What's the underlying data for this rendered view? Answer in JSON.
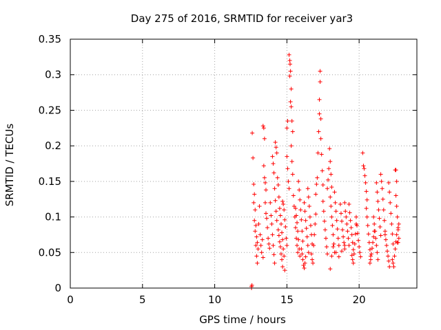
{
  "chart_data": {
    "type": "scatter",
    "title": "Day 275 of 2016, SRMTID for receiver yar3",
    "xlabel": "GPS time / hours",
    "ylabel": "SRMTID / TECUs",
    "xlim": [
      0,
      24
    ],
    "ylim": [
      0,
      0.35
    ],
    "xticks": [
      0,
      5,
      10,
      15,
      20
    ],
    "xtick_labels": [
      "0",
      "5",
      "10",
      "15",
      "20"
    ],
    "yticks": [
      0,
      0.05,
      0.1,
      0.15,
      0.2,
      0.25,
      0.3,
      0.35
    ],
    "ytick_labels": [
      "0",
      "0.05",
      "0.1",
      "0.15",
      "0.2",
      "0.25",
      "0.3",
      "0.35"
    ],
    "grid": true,
    "marker": "+",
    "color": "#ff0000",
    "series": [
      {
        "name": "SRMTID",
        "points": [
          [
            12.55,
            0.002
          ],
          [
            12.55,
            0.0
          ],
          [
            12.58,
            0.004
          ],
          [
            12.6,
            0.218
          ],
          [
            12.65,
            0.183
          ],
          [
            12.7,
            0.12
          ],
          [
            12.75,
            0.095
          ],
          [
            12.8,
            0.08
          ],
          [
            12.85,
            0.06
          ],
          [
            12.9,
            0.045
          ],
          [
            12.95,
            0.035
          ],
          [
            12.7,
            0.146
          ],
          [
            12.75,
            0.132
          ],
          [
            12.8,
            0.11
          ],
          [
            12.85,
            0.088
          ],
          [
            12.9,
            0.072
          ],
          [
            12.95,
            0.064
          ],
          [
            13.0,
            0.055
          ],
          [
            13.05,
            0.09
          ],
          [
            13.1,
            0.115
          ],
          [
            13.15,
            0.075
          ],
          [
            13.2,
            0.06
          ],
          [
            13.25,
            0.05
          ],
          [
            13.3,
            0.068
          ],
          [
            13.35,
            0.043
          ],
          [
            13.35,
            0.228
          ],
          [
            13.4,
            0.225
          ],
          [
            13.45,
            0.21
          ],
          [
            13.4,
            0.172
          ],
          [
            13.45,
            0.155
          ],
          [
            13.5,
            0.148
          ],
          [
            13.55,
            0.138
          ],
          [
            13.5,
            0.12
          ],
          [
            13.55,
            0.105
          ],
          [
            13.6,
            0.098
          ],
          [
            13.65,
            0.085
          ],
          [
            13.7,
            0.07
          ],
          [
            13.75,
            0.062
          ],
          [
            13.8,
            0.056
          ],
          [
            13.85,
            0.12
          ],
          [
            13.9,
            0.102
          ],
          [
            13.95,
            0.09
          ],
          [
            14.0,
            0.075
          ],
          [
            14.05,
            0.06
          ],
          [
            14.1,
            0.047
          ],
          [
            14.15,
            0.035
          ],
          [
            14.0,
            0.185
          ],
          [
            14.05,
            0.175
          ],
          [
            14.1,
            0.162
          ],
          [
            14.15,
            0.14
          ],
          [
            14.2,
            0.123
          ],
          [
            14.25,
            0.108
          ],
          [
            14.3,
            0.095
          ],
          [
            14.2,
            0.205
          ],
          [
            14.25,
            0.198
          ],
          [
            14.3,
            0.19
          ],
          [
            14.35,
            0.155
          ],
          [
            14.4,
            0.145
          ],
          [
            14.45,
            0.128
          ],
          [
            14.5,
            0.112
          ],
          [
            14.4,
            0.082
          ],
          [
            14.45,
            0.074
          ],
          [
            14.5,
            0.065
          ],
          [
            14.55,
            0.058
          ],
          [
            14.6,
            0.048
          ],
          [
            14.65,
            0.04
          ],
          [
            14.7,
            0.03
          ],
          [
            14.55,
            0.102
          ],
          [
            14.6,
            0.09
          ],
          [
            14.65,
            0.078
          ],
          [
            14.7,
            0.068
          ],
          [
            14.75,
            0.055
          ],
          [
            14.8,
            0.045
          ],
          [
            14.85,
            0.025
          ],
          [
            14.7,
            0.122
          ],
          [
            14.75,
            0.118
          ],
          [
            14.8,
            0.11
          ],
          [
            14.85,
            0.096
          ],
          [
            14.9,
            0.086
          ],
          [
            14.95,
            0.07
          ],
          [
            15.0,
            0.06
          ],
          [
            15.0,
            0.185
          ],
          [
            15.05,
            0.168
          ],
          [
            15.1,
            0.15
          ],
          [
            15.15,
            0.14
          ],
          [
            15.0,
            0.225
          ],
          [
            15.05,
            0.235
          ],
          [
            15.15,
            0.328
          ],
          [
            15.2,
            0.32
          ],
          [
            15.22,
            0.315
          ],
          [
            15.25,
            0.305
          ],
          [
            15.2,
            0.298
          ],
          [
            15.3,
            0.28
          ],
          [
            15.25,
            0.262
          ],
          [
            15.3,
            0.255
          ],
          [
            15.35,
            0.235
          ],
          [
            15.4,
            0.22
          ],
          [
            15.3,
            0.2
          ],
          [
            15.35,
            0.178
          ],
          [
            15.4,
            0.16
          ],
          [
            15.45,
            0.13
          ],
          [
            15.5,
            0.115
          ],
          [
            15.55,
            0.1
          ],
          [
            15.6,
            0.085
          ],
          [
            15.65,
            0.07
          ],
          [
            15.7,
            0.06
          ],
          [
            15.75,
            0.05
          ],
          [
            15.6,
            0.112
          ],
          [
            15.65,
            0.102
          ],
          [
            15.7,
            0.092
          ],
          [
            15.75,
            0.08
          ],
          [
            15.8,
            0.068
          ],
          [
            15.85,
            0.055
          ],
          [
            15.9,
            0.045
          ],
          [
            15.8,
            0.15
          ],
          [
            15.85,
            0.138
          ],
          [
            15.9,
            0.124
          ],
          [
            15.95,
            0.11
          ],
          [
            16.0,
            0.096
          ],
          [
            16.05,
            0.08
          ],
          [
            16.1,
            0.066
          ],
          [
            16.0,
            0.055
          ],
          [
            16.05,
            0.048
          ],
          [
            16.1,
            0.04
          ],
          [
            16.15,
            0.032
          ],
          [
            16.2,
            0.028
          ],
          [
            16.25,
            0.035
          ],
          [
            16.3,
            0.044
          ],
          [
            16.2,
            0.12
          ],
          [
            16.25,
            0.108
          ],
          [
            16.3,
            0.095
          ],
          [
            16.35,
            0.084
          ],
          [
            16.4,
            0.072
          ],
          [
            16.45,
            0.06
          ],
          [
            16.5,
            0.05
          ],
          [
            16.45,
            0.14
          ],
          [
            16.5,
            0.128
          ],
          [
            16.55,
            0.115
          ],
          [
            16.6,
            0.1
          ],
          [
            16.65,
            0.088
          ],
          [
            16.7,
            0.075
          ],
          [
            16.75,
            0.062
          ],
          [
            16.7,
            0.048
          ],
          [
            16.75,
            0.04
          ],
          [
            16.8,
            0.035
          ],
          [
            16.85,
            0.06
          ],
          [
            16.9,
            0.075
          ],
          [
            16.95,
            0.09
          ],
          [
            17.0,
            0.104
          ],
          [
            17.0,
            0.132
          ],
          [
            17.05,
            0.146
          ],
          [
            17.1,
            0.155
          ],
          [
            17.15,
            0.19
          ],
          [
            17.2,
            0.22
          ],
          [
            17.25,
            0.245
          ],
          [
            17.25,
            0.265
          ],
          [
            17.3,
            0.305
          ],
          [
            17.3,
            0.29
          ],
          [
            17.35,
            0.238
          ],
          [
            17.35,
            0.21
          ],
          [
            17.4,
            0.188
          ],
          [
            17.45,
            0.165
          ],
          [
            17.5,
            0.145
          ],
          [
            17.5,
            0.122
          ],
          [
            17.55,
            0.108
          ],
          [
            17.6,
            0.094
          ],
          [
            17.65,
            0.082
          ],
          [
            17.7,
            0.07
          ],
          [
            17.75,
            0.058
          ],
          [
            17.8,
            0.048
          ],
          [
            17.8,
            0.14
          ],
          [
            17.85,
            0.152
          ],
          [
            17.9,
            0.168
          ],
          [
            17.95,
            0.196
          ],
          [
            18.0,
            0.178
          ],
          [
            18.05,
            0.16
          ],
          [
            18.1,
            0.142
          ],
          [
            18.0,
            0.128
          ],
          [
            18.05,
            0.115
          ],
          [
            18.1,
            0.1
          ],
          [
            18.15,
            0.088
          ],
          [
            18.2,
            0.075
          ],
          [
            18.25,
            0.062
          ],
          [
            18.3,
            0.05
          ],
          [
            18.3,
            0.135
          ],
          [
            18.35,
            0.12
          ],
          [
            18.4,
            0.108
          ],
          [
            18.45,
            0.095
          ],
          [
            18.5,
            0.083
          ],
          [
            18.55,
            0.07
          ],
          [
            18.6,
            0.06
          ],
          [
            18.0,
            0.027
          ],
          [
            18.1,
            0.045
          ],
          [
            18.2,
            0.058
          ],
          [
            18.4,
            0.05
          ],
          [
            18.6,
            0.044
          ],
          [
            18.8,
            0.052
          ],
          [
            19.0,
            0.06
          ],
          [
            18.7,
            0.118
          ],
          [
            18.75,
            0.105
          ],
          [
            18.8,
            0.094
          ],
          [
            18.85,
            0.082
          ],
          [
            18.9,
            0.072
          ],
          [
            18.95,
            0.064
          ],
          [
            19.0,
            0.055
          ],
          [
            19.0,
            0.12
          ],
          [
            19.05,
            0.108
          ],
          [
            19.1,
            0.1
          ],
          [
            19.15,
            0.09
          ],
          [
            19.2,
            0.08
          ],
          [
            19.25,
            0.07
          ],
          [
            19.3,
            0.06
          ],
          [
            19.3,
            0.118
          ],
          [
            19.35,
            0.106
          ],
          [
            19.4,
            0.095
          ],
          [
            19.45,
            0.085
          ],
          [
            19.5,
            0.075
          ],
          [
            19.55,
            0.064
          ],
          [
            19.6,
            0.054
          ],
          [
            19.5,
            0.046
          ],
          [
            19.55,
            0.04
          ],
          [
            19.6,
            0.035
          ],
          [
            19.65,
            0.048
          ],
          [
            19.7,
            0.062
          ],
          [
            19.75,
            0.076
          ],
          [
            19.8,
            0.09
          ],
          [
            19.8,
            0.1
          ],
          [
            19.85,
            0.088
          ],
          [
            19.9,
            0.077
          ],
          [
            19.95,
            0.067
          ],
          [
            20.0,
            0.058
          ],
          [
            20.05,
            0.05
          ],
          [
            20.1,
            0.044
          ],
          [
            20.25,
            0.19
          ],
          [
            20.3,
            0.172
          ],
          [
            20.35,
            0.168
          ],
          [
            20.4,
            0.158
          ],
          [
            20.45,
            0.148
          ],
          [
            20.5,
            0.136
          ],
          [
            20.55,
            0.124
          ],
          [
            20.5,
            0.112
          ],
          [
            20.55,
            0.1
          ],
          [
            20.6,
            0.088
          ],
          [
            20.65,
            0.076
          ],
          [
            20.7,
            0.064
          ],
          [
            20.75,
            0.054
          ],
          [
            20.8,
            0.045
          ],
          [
            20.75,
            0.035
          ],
          [
            20.8,
            0.04
          ],
          [
            20.85,
            0.048
          ],
          [
            20.9,
            0.056
          ],
          [
            20.95,
            0.064
          ],
          [
            21.0,
            0.072
          ],
          [
            21.05,
            0.08
          ],
          [
            21.0,
            0.1
          ],
          [
            21.05,
            0.09
          ],
          [
            21.1,
            0.08
          ],
          [
            21.15,
            0.07
          ],
          [
            21.2,
            0.06
          ],
          [
            21.25,
            0.05
          ],
          [
            21.3,
            0.04
          ],
          [
            21.2,
            0.148
          ],
          [
            21.25,
            0.135
          ],
          [
            21.3,
            0.122
          ],
          [
            21.35,
            0.11
          ],
          [
            21.4,
            0.098
          ],
          [
            21.45,
            0.086
          ],
          [
            21.5,
            0.074
          ],
          [
            21.5,
            0.16
          ],
          [
            21.55,
            0.15
          ],
          [
            21.6,
            0.14
          ],
          [
            21.65,
            0.125
          ],
          [
            21.7,
            0.11
          ],
          [
            21.75,
            0.095
          ],
          [
            21.8,
            0.08
          ],
          [
            21.8,
            0.075
          ],
          [
            21.85,
            0.068
          ],
          [
            21.9,
            0.06
          ],
          [
            21.95,
            0.052
          ],
          [
            22.0,
            0.045
          ],
          [
            22.05,
            0.038
          ],
          [
            22.1,
            0.03
          ],
          [
            22.05,
            0.148
          ],
          [
            22.1,
            0.135
          ],
          [
            22.15,
            0.12
          ],
          [
            22.2,
            0.105
          ],
          [
            22.25,
            0.09
          ],
          [
            22.3,
            0.076
          ],
          [
            22.35,
            0.062
          ],
          [
            22.3,
            0.04
          ],
          [
            22.35,
            0.035
          ],
          [
            22.4,
            0.03
          ],
          [
            22.45,
            0.045
          ],
          [
            22.5,
            0.055
          ],
          [
            22.55,
            0.065
          ],
          [
            22.6,
            0.075
          ],
          [
            22.5,
            0.166
          ],
          [
            22.55,
            0.166
          ],
          [
            22.6,
            0.15
          ],
          [
            22.55,
            0.13
          ],
          [
            22.6,
            0.115
          ],
          [
            22.65,
            0.1
          ],
          [
            22.7,
            0.085
          ],
          [
            22.65,
            0.064
          ],
          [
            22.7,
            0.064
          ],
          [
            22.75,
            0.07
          ],
          [
            22.7,
            0.082
          ],
          [
            22.75,
            0.09
          ]
        ]
      }
    ]
  }
}
